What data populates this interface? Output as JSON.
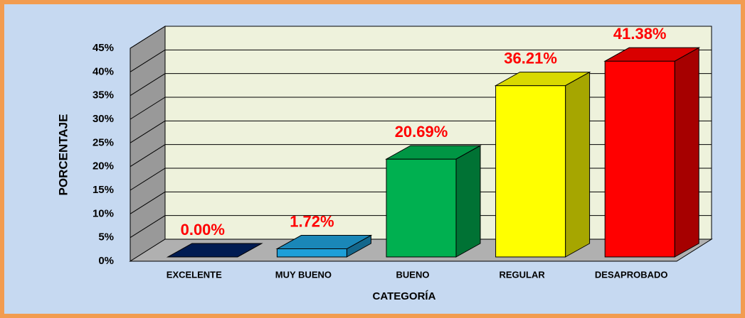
{
  "chart_data": {
    "type": "bar3d",
    "x_label": "CATEGORÍA",
    "y_label": "PORCENTAJE",
    "categories": [
      "EXCELENTE",
      "MUY BUENO",
      "BUENO",
      "REGULAR",
      "DESAPROBADO"
    ],
    "values": [
      0,
      1.72,
      20.69,
      36.21,
      41.38
    ],
    "value_labels": [
      "0.00%",
      "1.72%",
      "20.69%",
      "36.21%",
      "41.38%"
    ],
    "colors": [
      "#002060",
      "#1e9fd8",
      "#00b050",
      "#ffff00",
      "#ff0000"
    ],
    "ylim": [
      0,
      45
    ],
    "yticks": [
      {
        "value": 0,
        "label": "0%"
      },
      {
        "value": 5,
        "label": "5%"
      },
      {
        "value": 10,
        "label": "10%"
      },
      {
        "value": 15,
        "label": "15%"
      },
      {
        "value": 20,
        "label": "20%"
      },
      {
        "value": 25,
        "label": "25%"
      },
      {
        "value": 30,
        "label": "30%"
      },
      {
        "value": 35,
        "label": "35%"
      },
      {
        "value": 40,
        "label": "40%"
      },
      {
        "value": 45,
        "label": "45%"
      }
    ],
    "grid": true
  }
}
